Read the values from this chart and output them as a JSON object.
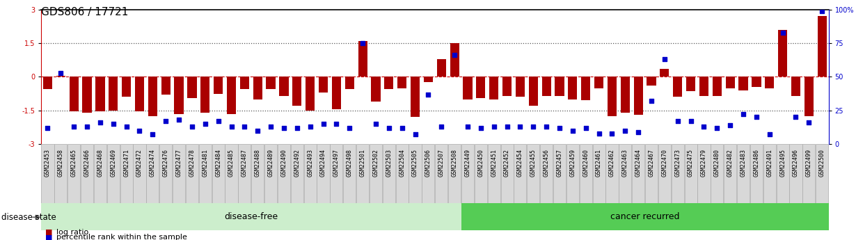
{
  "title": "GDS806 / 17721",
  "samples": [
    "GSM22453",
    "GSM22458",
    "GSM22465",
    "GSM22466",
    "GSM22468",
    "GSM22469",
    "GSM22471",
    "GSM22472",
    "GSM22474",
    "GSM22476",
    "GSM22477",
    "GSM22478",
    "GSM22481",
    "GSM22484",
    "GSM22485",
    "GSM22487",
    "GSM22488",
    "GSM22489",
    "GSM22490",
    "GSM22492",
    "GSM22493",
    "GSM22494",
    "GSM22497",
    "GSM22498",
    "GSM22501",
    "GSM22502",
    "GSM22503",
    "GSM22504",
    "GSM22505",
    "GSM22506",
    "GSM22507",
    "GSM22508",
    "GSM22449",
    "GSM22450",
    "GSM22451",
    "GSM22452",
    "GSM22454",
    "GSM22455",
    "GSM22456",
    "GSM22457",
    "GSM22459",
    "GSM22460",
    "GSM22461",
    "GSM22462",
    "GSM22463",
    "GSM22464",
    "GSM22467",
    "GSM22470",
    "GSM22473",
    "GSM22475",
    "GSM22479",
    "GSM22480",
    "GSM22482",
    "GSM22483",
    "GSM22486",
    "GSM22491",
    "GSM22495",
    "GSM22496",
    "GSM22499",
    "GSM22500"
  ],
  "log_ratio": [
    -0.55,
    0.05,
    -1.55,
    -1.6,
    -1.55,
    -1.5,
    -0.9,
    -1.55,
    -1.75,
    -0.8,
    -1.65,
    -0.95,
    -1.6,
    -0.75,
    -1.65,
    -0.55,
    -1.0,
    -0.55,
    -0.85,
    -1.3,
    -1.5,
    -0.7,
    -1.45,
    -0.55,
    1.6,
    -1.1,
    -0.55,
    -0.5,
    -1.8,
    -0.25,
    0.8,
    1.5,
    -1.0,
    -0.95,
    -1.0,
    -0.85,
    -0.9,
    -1.3,
    -0.85,
    -0.85,
    -1.0,
    -1.05,
    -0.5,
    -1.75,
    -1.6,
    -1.7,
    -0.4,
    0.35,
    -0.9,
    -0.65,
    -0.85,
    -0.85,
    -0.5,
    -0.6,
    -0.45,
    -0.5,
    2.1,
    -0.85,
    -1.75,
    2.7
  ],
  "percentile": [
    12,
    53,
    13,
    13,
    16,
    15,
    13,
    10,
    7,
    17,
    18,
    13,
    15,
    17,
    13,
    13,
    10,
    13,
    12,
    12,
    13,
    15,
    15,
    12,
    75,
    15,
    12,
    12,
    7,
    37,
    13,
    66,
    13,
    12,
    13,
    13,
    13,
    13,
    13,
    12,
    10,
    12,
    8,
    8,
    10,
    9,
    32,
    63,
    17,
    17,
    13,
    12,
    14,
    22,
    20,
    7,
    83,
    20,
    16,
    99
  ],
  "disease_free_count": 32,
  "bar_color": "#aa0000",
  "dot_color": "#0000cc",
  "bg_color_df": "#cceecc",
  "bg_color_cr": "#55cc55",
  "ylim_left": [
    -3,
    3
  ],
  "ylim_right": [
    0,
    100
  ],
  "yticks_left": [
    -3,
    -1.5,
    0,
    1.5,
    3
  ],
  "yticks_right": [
    0,
    25,
    50,
    75,
    100
  ],
  "hlines_dotted": [
    -1.5,
    1.5
  ],
  "hline_dashed": 0.0,
  "title_fontsize": 11,
  "tick_fontsize": 7,
  "bar_width": 0.7
}
